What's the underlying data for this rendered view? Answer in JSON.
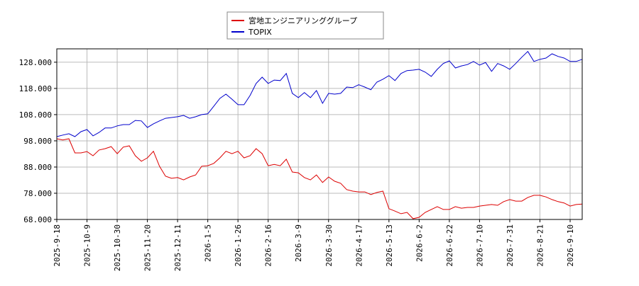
{
  "chart_data": {
    "type": "line",
    "categories": [
      "2025-9-18",
      null,
      null,
      null,
      null,
      "2025-10-9",
      null,
      null,
      null,
      null,
      "2025-10-30",
      null,
      null,
      null,
      null,
      "2025-11-20",
      null,
      null,
      null,
      null,
      "2025-12-11",
      null,
      null,
      null,
      null,
      "2026-1-5",
      null,
      null,
      null,
      null,
      "2026-1-26",
      null,
      null,
      null,
      null,
      "2026-2-16",
      null,
      null,
      null,
      null,
      "2026-3-9",
      null,
      null,
      null,
      null,
      "2026-3-30",
      null,
      null,
      null,
      null,
      "2026-4-17",
      null,
      null,
      null,
      null,
      "2026-5-13",
      null,
      null,
      null,
      null,
      "2026-6-2",
      null,
      null,
      null,
      null,
      "2026-6-22",
      null,
      null,
      null,
      null,
      "2026-7-10",
      null,
      null,
      null,
      null,
      "2026-7-31",
      null,
      null,
      null,
      null,
      "2026-8-21",
      null,
      null,
      null,
      null,
      "2026-9-10",
      null,
      null
    ],
    "series": [
      {
        "name": "宮地エンジニアリンググループ",
        "color": "#dd0000",
        "values": [
          98.8,
          98.3,
          98.8,
          93.4,
          93.4,
          93.9,
          92.3,
          94.5,
          95.0,
          95.8,
          93.1,
          95.6,
          96.1,
          92.3,
          90.2,
          91.5,
          94.0,
          88.3,
          84.5,
          83.7,
          84.0,
          83.1,
          84.2,
          85.0,
          88.3,
          88.5,
          89.4,
          91.5,
          94.0,
          93.1,
          94.0,
          91.5,
          92.3,
          95.0,
          93.1,
          88.5,
          89.0,
          88.5,
          91.0,
          86.1,
          85.8,
          84.0,
          83.1,
          85.0,
          82.1,
          84.2,
          82.6,
          81.8,
          79.4,
          78.8,
          78.5,
          78.5,
          77.5,
          78.3,
          78.8,
          72.1,
          71.2,
          70.2,
          70.7,
          68.3,
          68.8,
          70.7,
          71.8,
          72.9,
          71.8,
          71.8,
          72.9,
          72.3,
          72.6,
          72.6,
          73.1,
          73.4,
          73.7,
          73.4,
          74.8,
          75.6,
          75.0,
          75.0,
          76.4,
          77.2,
          77.2,
          76.6,
          75.6,
          74.8,
          74.3,
          73.1,
          73.7,
          73.9
        ]
      },
      {
        "name": "TOPIX",
        "color": "#0000cc",
        "values": [
          99.6,
          100.2,
          100.7,
          99.6,
          101.5,
          102.3,
          99.9,
          101.2,
          102.9,
          102.9,
          103.7,
          104.2,
          104.2,
          105.8,
          105.6,
          103.1,
          104.5,
          105.6,
          106.6,
          106.9,
          107.2,
          107.7,
          106.6,
          107.2,
          108.0,
          108.3,
          111.2,
          114.2,
          115.8,
          113.9,
          111.8,
          111.8,
          115.3,
          119.9,
          122.3,
          119.9,
          121.2,
          121.0,
          123.7,
          116.1,
          114.5,
          116.4,
          114.5,
          117.2,
          112.3,
          116.1,
          115.8,
          116.1,
          118.5,
          118.3,
          119.4,
          118.5,
          117.5,
          120.4,
          121.5,
          122.9,
          121.0,
          123.7,
          124.8,
          125.0,
          125.3,
          124.2,
          122.6,
          125.3,
          127.5,
          128.5,
          125.8,
          126.6,
          127.1,
          128.3,
          126.9,
          127.9,
          124.5,
          127.5,
          126.6,
          125.3,
          127.5,
          129.9,
          132.1,
          128.3,
          129.1,
          129.6,
          131.2,
          130.2,
          129.6,
          128.3,
          128.3,
          129.1
        ]
      }
    ],
    "ylim": [
      68,
      133.1
    ],
    "yticks": [
      {
        "value": 68,
        "label": "68.000"
      },
      {
        "value": 78,
        "label": "78.000"
      },
      {
        "value": 88,
        "label": "88.000"
      },
      {
        "value": 98,
        "label": "98.000"
      },
      {
        "value": 108,
        "label": "108.000"
      },
      {
        "value": 118,
        "label": "118.000"
      },
      {
        "value": 128,
        "label": "128.000"
      }
    ],
    "grid": true
  }
}
